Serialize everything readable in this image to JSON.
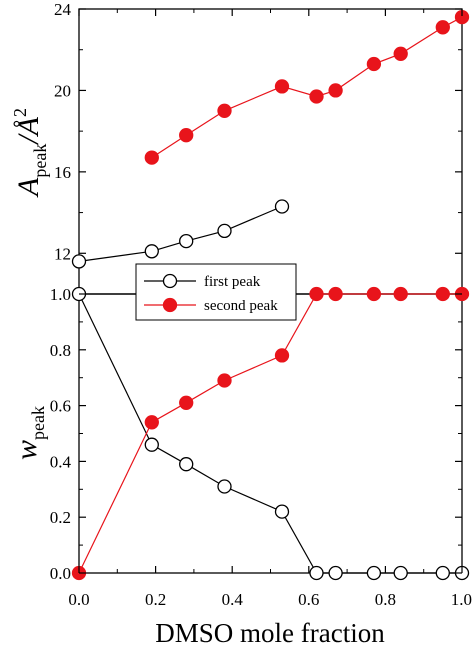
{
  "chart_data": [
    {
      "type": "line",
      "ylabel": {
        "main": "A",
        "sub": "peak",
        "unit": "/Å",
        "sup": "2"
      },
      "ylim": [
        10,
        24
      ],
      "yticks": [
        "12",
        "16",
        "20",
        "24"
      ],
      "grid": false,
      "series": [
        {
          "name": "first peak",
          "marker": "open-circle",
          "color": "#000000",
          "x": [
            0.0,
            0.19,
            0.28,
            0.38,
            0.53
          ],
          "y": [
            11.6,
            12.1,
            12.6,
            13.1,
            14.3
          ]
        },
        {
          "name": "second peak",
          "marker": "filled-circle",
          "color": "#e8141b",
          "x": [
            0.19,
            0.28,
            0.38,
            0.53,
            0.62,
            0.67,
            0.77,
            0.84,
            0.95,
            1.0
          ],
          "y": [
            16.7,
            17.8,
            19.0,
            20.2,
            19.7,
            20.0,
            21.3,
            21.8,
            23.1,
            23.6
          ]
        }
      ]
    },
    {
      "type": "line",
      "xlabel": "DMSO mole fraction",
      "ylabel": {
        "main": "w",
        "sub": "peak"
      },
      "xlim": [
        0,
        1
      ],
      "ylim": [
        0,
        1
      ],
      "xticks": [
        "0.0",
        "0.2",
        "0.4",
        "0.6",
        "0.8",
        "1.0"
      ],
      "yticks": [
        "0.0",
        "0.2",
        "0.4",
        "0.6",
        "0.8",
        "1.0"
      ],
      "grid": false,
      "legend": {
        "position": "top-left",
        "entries": [
          "first peak",
          "second peak"
        ]
      },
      "series": [
        {
          "name": "first peak",
          "marker": "open-circle",
          "color": "#000000",
          "x": [
            0.0,
            0.19,
            0.28,
            0.38,
            0.53,
            0.62,
            0.67,
            0.77,
            0.84,
            0.95,
            1.0
          ],
          "y": [
            1.0,
            0.46,
            0.39,
            0.31,
            0.22,
            0.0,
            0.0,
            0.0,
            0.0,
            0.0,
            0.0
          ]
        },
        {
          "name": "second peak",
          "marker": "filled-circle",
          "color": "#e8141b",
          "x": [
            0.0,
            0.19,
            0.28,
            0.38,
            0.53,
            0.62,
            0.67,
            0.77,
            0.84,
            0.95,
            1.0
          ],
          "y": [
            0.0,
            0.54,
            0.61,
            0.69,
            0.78,
            1.0,
            1.0,
            1.0,
            1.0,
            1.0,
            1.0
          ]
        }
      ]
    }
  ]
}
